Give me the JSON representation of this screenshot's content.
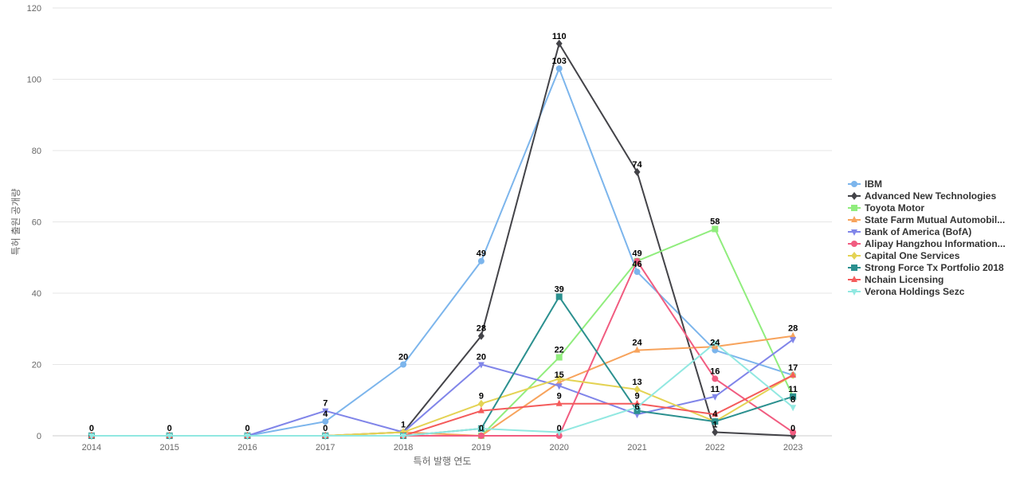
{
  "chart_data": {
    "type": "line",
    "title": "",
    "xlabel": "특허 발행 연도",
    "ylabel": "특허 출원 공개량",
    "x": [
      "2014",
      "2015",
      "2016",
      "2017",
      "2018",
      "2019",
      "2020",
      "2021",
      "2022",
      "2023"
    ],
    "ylim": [
      0,
      120
    ],
    "yticks": [
      0,
      20,
      40,
      60,
      80,
      100,
      120
    ],
    "grid": true,
    "legend_position": "right",
    "series": [
      {
        "name": "IBM",
        "color": "#7cb5ec",
        "marker": "circle",
        "values": [
          0,
          0,
          0,
          4,
          20,
          49,
          103,
          46,
          24,
          17
        ]
      },
      {
        "name": "Advanced New Technologies",
        "color": "#434348",
        "marker": "diamond",
        "values": [
          0,
          0,
          0,
          0,
          1,
          28,
          110,
          74,
          1,
          0
        ]
      },
      {
        "name": "Toyota Motor",
        "color": "#90ed7d",
        "marker": "square",
        "values": [
          0,
          0,
          0,
          0,
          0,
          0,
          22,
          49,
          58,
          11
        ]
      },
      {
        "name": "State Farm Mutual Automobil...",
        "color": "#f7a35c",
        "marker": "triangle",
        "values": [
          0,
          0,
          0,
          0,
          1,
          0,
          15,
          24,
          25,
          28
        ]
      },
      {
        "name": "Bank of America (BofA)",
        "color": "#8085e9",
        "marker": "triangle-down",
        "values": [
          0,
          0,
          0,
          7,
          1,
          20,
          14,
          6,
          11,
          27
        ]
      },
      {
        "name": "Alipay Hangzhou Information...",
        "color": "#f15c80",
        "marker": "circle",
        "values": [
          0,
          0,
          0,
          0,
          0,
          0,
          0,
          49,
          16,
          1
        ]
      },
      {
        "name": "Capital One Services",
        "color": "#e4d354",
        "marker": "diamond",
        "values": [
          0,
          0,
          0,
          0,
          1,
          9,
          16,
          13,
          4,
          17
        ]
      },
      {
        "name": "Strong Force Tx Portfolio 2018",
        "color": "#2b908f",
        "marker": "square",
        "values": [
          0,
          0,
          0,
          0,
          0,
          2,
          39,
          7,
          4,
          11
        ]
      },
      {
        "name": "Nchain Licensing",
        "color": "#f45b5b",
        "marker": "triangle",
        "values": [
          0,
          0,
          0,
          0,
          0,
          7,
          9,
          9,
          6,
          17
        ]
      },
      {
        "name": "Verona Holdings Sezc",
        "color": "#91e8e1",
        "marker": "triangle-down",
        "values": [
          0,
          0,
          0,
          0,
          0,
          2,
          1,
          8,
          26,
          8
        ]
      }
    ],
    "data_labels": [
      {
        "x": "2014",
        "y": 0,
        "text": "0"
      },
      {
        "x": "2015",
        "y": 0,
        "text": "0"
      },
      {
        "x": "2016",
        "y": 0,
        "text": "0"
      },
      {
        "x": "2017",
        "y": 0,
        "text": "0"
      },
      {
        "x": "2017",
        "y": 4,
        "text": "4"
      },
      {
        "x": "2017",
        "y": 7,
        "text": "7"
      },
      {
        "x": "2018",
        "y": 1,
        "text": "1"
      },
      {
        "x": "2018",
        "y": 20,
        "text": "20"
      },
      {
        "x": "2019",
        "y": 0,
        "text": "0"
      },
      {
        "x": "2019",
        "y": 9,
        "text": "9"
      },
      {
        "x": "2019",
        "y": 20,
        "text": "20"
      },
      {
        "x": "2019",
        "y": 28,
        "text": "28"
      },
      {
        "x": "2019",
        "y": 49,
        "text": "49"
      },
      {
        "x": "2020",
        "y": 0,
        "text": "0"
      },
      {
        "x": "2020",
        "y": 9,
        "text": "9"
      },
      {
        "x": "2020",
        "y": 15,
        "text": "15"
      },
      {
        "x": "2020",
        "y": 22,
        "text": "22"
      },
      {
        "x": "2020",
        "y": 39,
        "text": "39"
      },
      {
        "x": "2020",
        "y": 103,
        "text": "103"
      },
      {
        "x": "2020",
        "y": 110,
        "text": "110"
      },
      {
        "x": "2021",
        "y": 6,
        "text": "6"
      },
      {
        "x": "2021",
        "y": 9,
        "text": "9"
      },
      {
        "x": "2021",
        "y": 13,
        "text": "13"
      },
      {
        "x": "2021",
        "y": 24,
        "text": "24"
      },
      {
        "x": "2021",
        "y": 46,
        "text": "46"
      },
      {
        "x": "2021",
        "y": 49,
        "text": "49"
      },
      {
        "x": "2021",
        "y": 74,
        "text": "74"
      },
      {
        "x": "2022",
        "y": 1,
        "text": "1"
      },
      {
        "x": "2022",
        "y": 4,
        "text": "4"
      },
      {
        "x": "2022",
        "y": 11,
        "text": "11"
      },
      {
        "x": "2022",
        "y": 16,
        "text": "16"
      },
      {
        "x": "2022",
        "y": 24,
        "text": "24"
      },
      {
        "x": "2022",
        "y": 58,
        "text": "58"
      },
      {
        "x": "2023",
        "y": 0,
        "text": "0"
      },
      {
        "x": "2023",
        "y": 8,
        "text": "8"
      },
      {
        "x": "2023",
        "y": 11,
        "text": "11"
      },
      {
        "x": "2023",
        "y": 17,
        "text": "17"
      },
      {
        "x": "2023",
        "y": 28,
        "text": "28"
      }
    ]
  }
}
